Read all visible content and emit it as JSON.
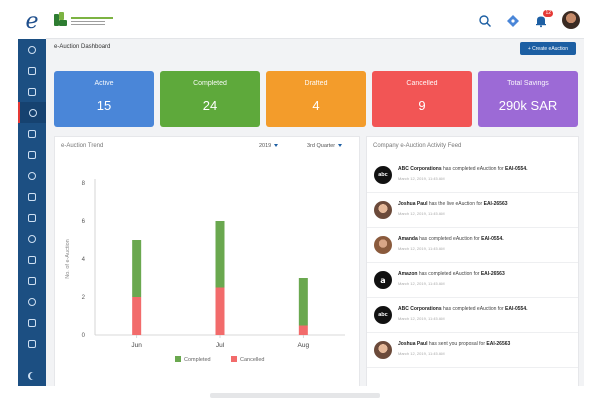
{
  "brand": {
    "letter": "e"
  },
  "topbar": {
    "icons": [
      "search-icon",
      "tag-icon",
      "bell-icon"
    ],
    "notification_count": "12"
  },
  "page": {
    "title": "e-Auction Dashboard",
    "create_button": "+ Create eAuction"
  },
  "sidebar": {
    "items": [
      "info-icon",
      "chart-icon",
      "document-icon",
      "auction-icon",
      "handshake-icon",
      "box-icon",
      "report-icon",
      "lock-icon",
      "cart-icon",
      "package-icon",
      "check-icon",
      "grid-icon",
      "file-icon",
      "dollar-icon",
      "settings-icon"
    ],
    "active_index": 3
  },
  "stats": [
    {
      "label": "Active",
      "value": "15",
      "color": "#4a86d8"
    },
    {
      "label": "Completed",
      "value": "24",
      "color": "#5ea93b"
    },
    {
      "label": "Drafted",
      "value": "4",
      "color": "#f39c2b"
    },
    {
      "label": "Cancelled",
      "value": "9",
      "color": "#f25555"
    },
    {
      "label": "Total Savings",
      "value": "290k SAR",
      "color": "#9c6ad6"
    }
  ],
  "trend": {
    "title": "e-Auction Trend",
    "year": "2019",
    "quarter": "3rd Quarter"
  },
  "chart_data": {
    "type": "bar",
    "stacked": true,
    "categories": [
      "Jun",
      "Jul",
      "Aug"
    ],
    "series": [
      {
        "name": "Completed",
        "values": [
          3,
          3.5,
          2.5
        ],
        "color": "#6aa84f"
      },
      {
        "name": "Cancelled",
        "values": [
          2,
          2.5,
          0.5
        ],
        "color": "#f26b6b"
      }
    ],
    "ylabel": "No. of e-Auction",
    "ylim": [
      0,
      8
    ],
    "yticks": [
      0,
      2,
      4,
      6,
      8
    ],
    "grid": false,
    "legend": "bottom"
  },
  "feed": {
    "title": "Company e-Auction Activity Feed",
    "items": [
      {
        "avatar": "abc",
        "avatar_text": "abc",
        "actor": "ABC Corporations",
        "action": "has completed eAuction for",
        "ref": "EAI-0554.",
        "time": "March 12, 2019, 11:45 AM"
      },
      {
        "avatar": "person",
        "avatar_text": "",
        "actor": "Joshua Paul",
        "action": "has the live eAuction for",
        "ref": "EAI-26563",
        "time": "March 12, 2019, 11:45 AM"
      },
      {
        "avatar": "person2",
        "avatar_text": "",
        "actor": "Amanda",
        "action": "has completed eAuction for",
        "ref": "EAI-0554.",
        "time": "March 12, 2019, 11:45 AM"
      },
      {
        "avatar": "amz",
        "avatar_text": "a",
        "actor": "Amazon",
        "action": "has completed eAuction for",
        "ref": "EAI-26563",
        "time": "March 12, 2019, 11:45 AM"
      },
      {
        "avatar": "abc",
        "avatar_text": "abc",
        "actor": "ABC Corporations",
        "action": "has completed eAuction for",
        "ref": "EAI-0554.",
        "time": "March 12, 2019, 11:45 AM"
      },
      {
        "avatar": "person",
        "avatar_text": "",
        "actor": "Joshua Paul",
        "action": "has sent you proposal for",
        "ref": "EAI-26563",
        "time": "March 12, 2019, 11:45 AM"
      }
    ]
  }
}
